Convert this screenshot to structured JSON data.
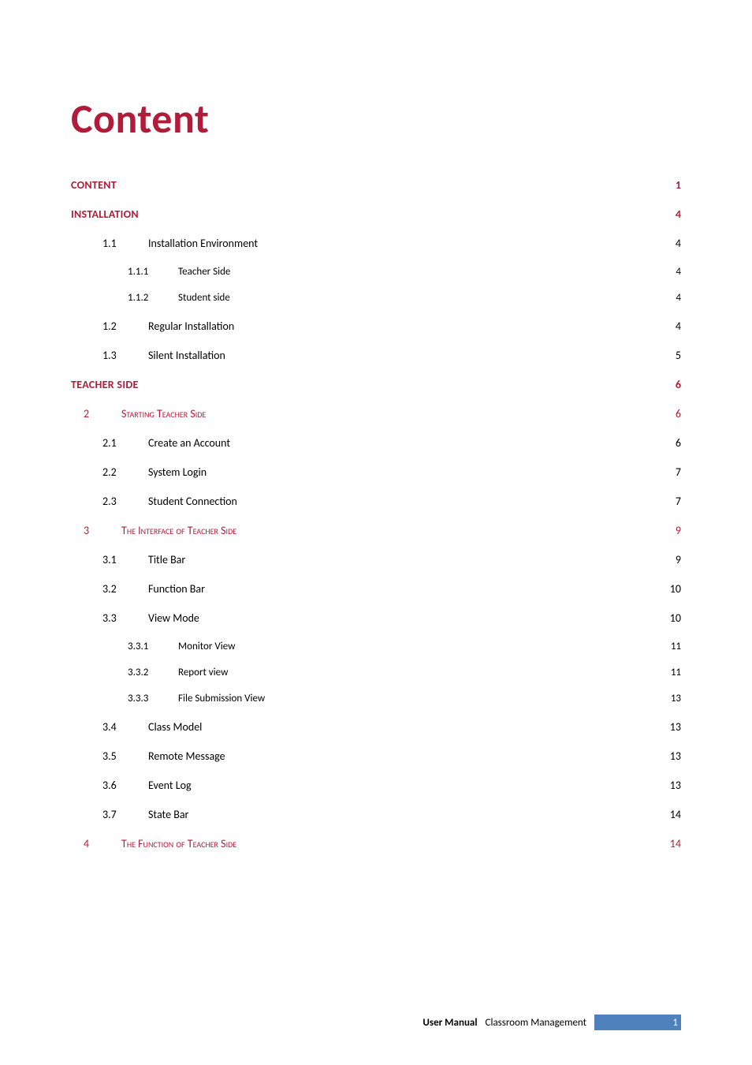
{
  "title": {
    "text": "Content",
    "color": "#b01c3a"
  },
  "colors": {
    "accent": "#b01c3a",
    "chapter_text": "#b01c3a",
    "body_text": "#000000",
    "background": "#ffffff",
    "footer_bar": "#4f81bd"
  },
  "toc": [
    {
      "level": "top",
      "num": "",
      "label": "Content",
      "page": "1",
      "color": "#b01c3a"
    },
    {
      "level": "top",
      "num": "",
      "label": "Installation",
      "page": "4",
      "color": "#b01c3a"
    },
    {
      "level": "sec",
      "num": "1.1",
      "label": "Installation Environment",
      "page": "4",
      "color": "#000000"
    },
    {
      "level": "sub",
      "num": "1.1.1",
      "label": "Teacher Side",
      "page": "4",
      "color": "#000000"
    },
    {
      "level": "sub",
      "num": "1.1.2",
      "label": "Student side",
      "page": "4",
      "color": "#000000"
    },
    {
      "level": "sec",
      "num": "1.2",
      "label": "Regular Installation",
      "page": "4",
      "color": "#000000"
    },
    {
      "level": "sec",
      "num": "1.3",
      "label": "Silent Installation",
      "page": "5",
      "color": "#000000"
    },
    {
      "level": "top",
      "num": "",
      "label": "Teacher Side",
      "page": "6",
      "color": "#b01c3a"
    },
    {
      "level": "chap",
      "num": "2",
      "label": "Starting Teacher Side",
      "page": "6",
      "color": "#b01c3a"
    },
    {
      "level": "sec",
      "num": "2.1",
      "label": "Create an Account",
      "page": "6",
      "color": "#000000"
    },
    {
      "level": "sec",
      "num": "2.2",
      "label": "System Login",
      "page": "7",
      "color": "#000000"
    },
    {
      "level": "sec",
      "num": "2.3",
      "label": "Student Connection",
      "page": "7",
      "color": "#000000"
    },
    {
      "level": "chap",
      "num": "3",
      "label": "The Interface of Teacher Side",
      "page": "9",
      "color": "#b01c3a"
    },
    {
      "level": "sec",
      "num": "3.1",
      "label": "Title Bar",
      "page": "9",
      "color": "#000000"
    },
    {
      "level": "sec",
      "num": "3.2",
      "label": "Function Bar",
      "page": "10",
      "color": "#000000"
    },
    {
      "level": "sec",
      "num": "3.3",
      "label": "View Mode",
      "page": "10",
      "color": "#000000"
    },
    {
      "level": "sub",
      "num": "3.3.1",
      "label": "Monitor View",
      "page": "11",
      "color": "#000000"
    },
    {
      "level": "sub",
      "num": "3.3.2",
      "label": "Report view",
      "page": "11",
      "color": "#000000"
    },
    {
      "level": "sub",
      "num": "3.3.3",
      "label": "File Submission View",
      "page": "13",
      "color": "#000000"
    },
    {
      "level": "sec",
      "num": "3.4",
      "label": "Class Model",
      "page": "13",
      "color": "#000000"
    },
    {
      "level": "sec",
      "num": "3.5",
      "label": "Remote Message",
      "page": "13",
      "color": "#000000"
    },
    {
      "level": "sec",
      "num": "3.6",
      "label": "Event Log",
      "page": "13",
      "color": "#000000"
    },
    {
      "level": "sec",
      "num": "3.7",
      "label": "State Bar",
      "page": "14",
      "color": "#000000"
    },
    {
      "level": "chap",
      "num": "4",
      "label": "The Function of Teacher Side",
      "page": "14",
      "color": "#b01c3a"
    }
  ],
  "footer": {
    "left": "User Manual",
    "mid": "Classroom Management",
    "page_number": "1",
    "bar_color": "#4f81bd"
  }
}
